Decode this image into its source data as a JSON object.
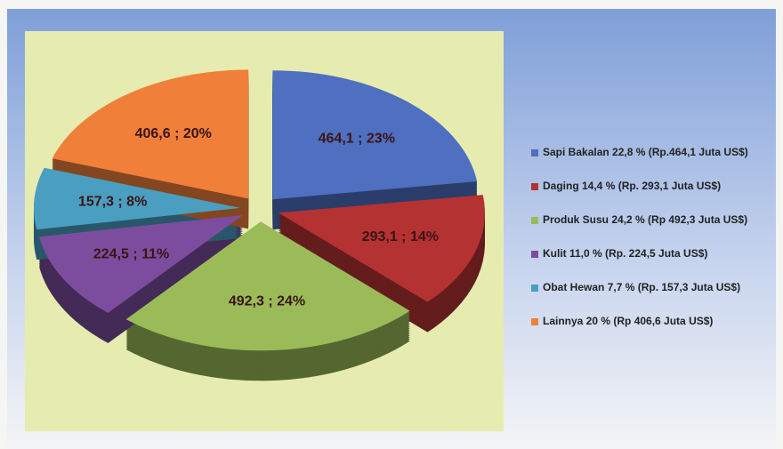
{
  "chart_data": {
    "type": "pie",
    "categories": [
      "Sapi Bakalan 22,8 % (Rp.464,1 Juta US$)",
      "Daging 14,4 % (Rp. 293,1 Juta US$)",
      "Produk Susu 24,2 % (Rp 492,3 Juta US$)",
      "Kulit 11,0 % (Rp. 224,5 Juta US$)",
      "Obat Hewan 7,7 % (Rp. 157,3 Juta US$)",
      "Lainnya 20 % (Rp 406,6 Juta US$)"
    ],
    "values": [
      464.1,
      293.1,
      492.3,
      224.5,
      157.3,
      406.6
    ],
    "value_labels": [
      "464,1 ; 23%",
      "293,1 ; 14%",
      "492,3 ; 24%",
      "224,5 ; 11%",
      "157,3 ; 8%",
      "406,6 ; 20%"
    ],
    "colors": [
      "#4f6fc0",
      "#b53232",
      "#9bbb59",
      "#7c4d9e",
      "#4a9fc0",
      "#f07f3a"
    ],
    "legend": "right"
  }
}
